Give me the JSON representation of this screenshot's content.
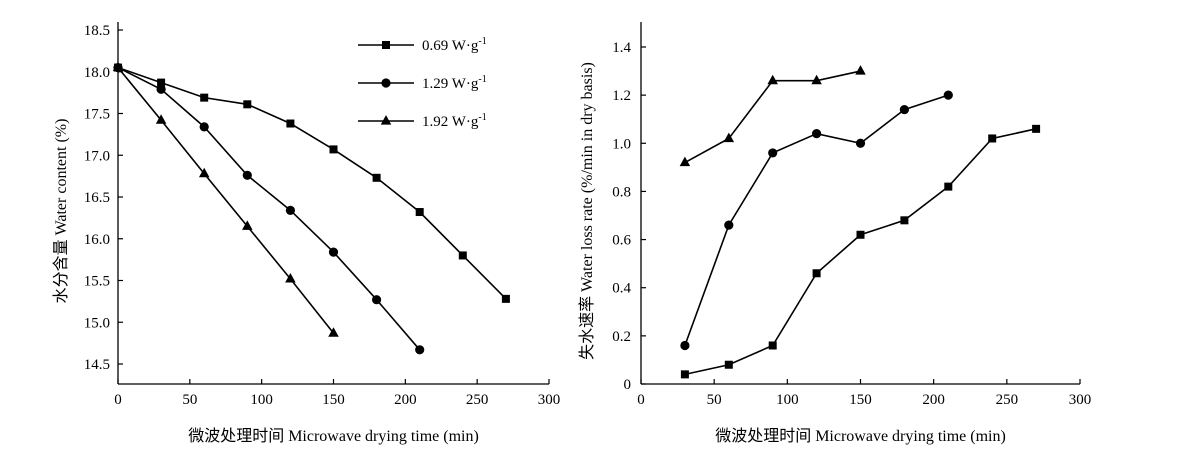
{
  "chart_data": [
    {
      "type": "line",
      "title": "",
      "xlabel": "微波处理时间 Microwave drying time (min)",
      "ylabel": "水分含量 Water content (%)",
      "xlim": [
        0,
        300
      ],
      "ylim": [
        14.25,
        18.5
      ],
      "xticks": [
        "0",
        "50",
        "100",
        "150",
        "200",
        "250",
        "300"
      ],
      "yticks": [
        "14.5",
        "15.0",
        "15.5",
        "16.0",
        "16.5",
        "17.0",
        "17.5",
        "18.0",
        "18.5"
      ],
      "grid": false,
      "legend_position": "top-right",
      "series": [
        {
          "name": "0.69 W·g",
          "name_sup": "-1",
          "marker": "square",
          "x": [
            0,
            30,
            60,
            90,
            120,
            150,
            180,
            210,
            240,
            270
          ],
          "y": [
            18.05,
            17.87,
            17.69,
            17.61,
            17.38,
            17.07,
            16.73,
            16.32,
            15.8,
            15.28
          ]
        },
        {
          "name": "1.29 W·g",
          "name_sup": "-1",
          "marker": "circle",
          "x": [
            0,
            30,
            60,
            90,
            120,
            150,
            180,
            210
          ],
          "y": [
            18.05,
            17.79,
            17.34,
            16.76,
            16.34,
            15.84,
            15.27,
            14.67
          ]
        },
        {
          "name": "1.92 W·g",
          "name_sup": "-1",
          "marker": "triangle",
          "x": [
            0,
            30,
            60,
            90,
            120,
            150
          ],
          "y": [
            18.05,
            17.42,
            16.78,
            16.15,
            15.52,
            14.87
          ]
        }
      ]
    },
    {
      "type": "line",
      "title": "",
      "xlabel": "微波处理时间 Microwave drying time (min)",
      "ylabel": "失水速率 Water loss rate (%/min in dry basis)",
      "xlim": [
        0,
        300
      ],
      "ylim": [
        0,
        1.5
      ],
      "xticks": [
        "0",
        "50",
        "100",
        "150",
        "200",
        "250",
        "300"
      ],
      "yticks": [
        "0",
        "0.2",
        "0.4",
        "0.6",
        "0.8",
        "1.0",
        "1.2",
        "1.4"
      ],
      "grid": false,
      "legend": false,
      "series": [
        {
          "marker": "square",
          "x": [
            30,
            60,
            90,
            120,
            150,
            180,
            210,
            240,
            270
          ],
          "y": [
            0.04,
            0.08,
            0.16,
            0.46,
            0.62,
            0.68,
            0.82,
            1.02,
            1.06
          ]
        },
        {
          "marker": "circle",
          "x": [
            30,
            60,
            90,
            120,
            150,
            180,
            210
          ],
          "y": [
            0.16,
            0.66,
            0.96,
            1.04,
            1.0,
            1.14,
            1.2
          ]
        },
        {
          "marker": "triangle",
          "x": [
            30,
            60,
            90,
            120,
            150
          ],
          "y": [
            0.92,
            1.02,
            1.26,
            1.26,
            1.3
          ]
        }
      ]
    }
  ]
}
